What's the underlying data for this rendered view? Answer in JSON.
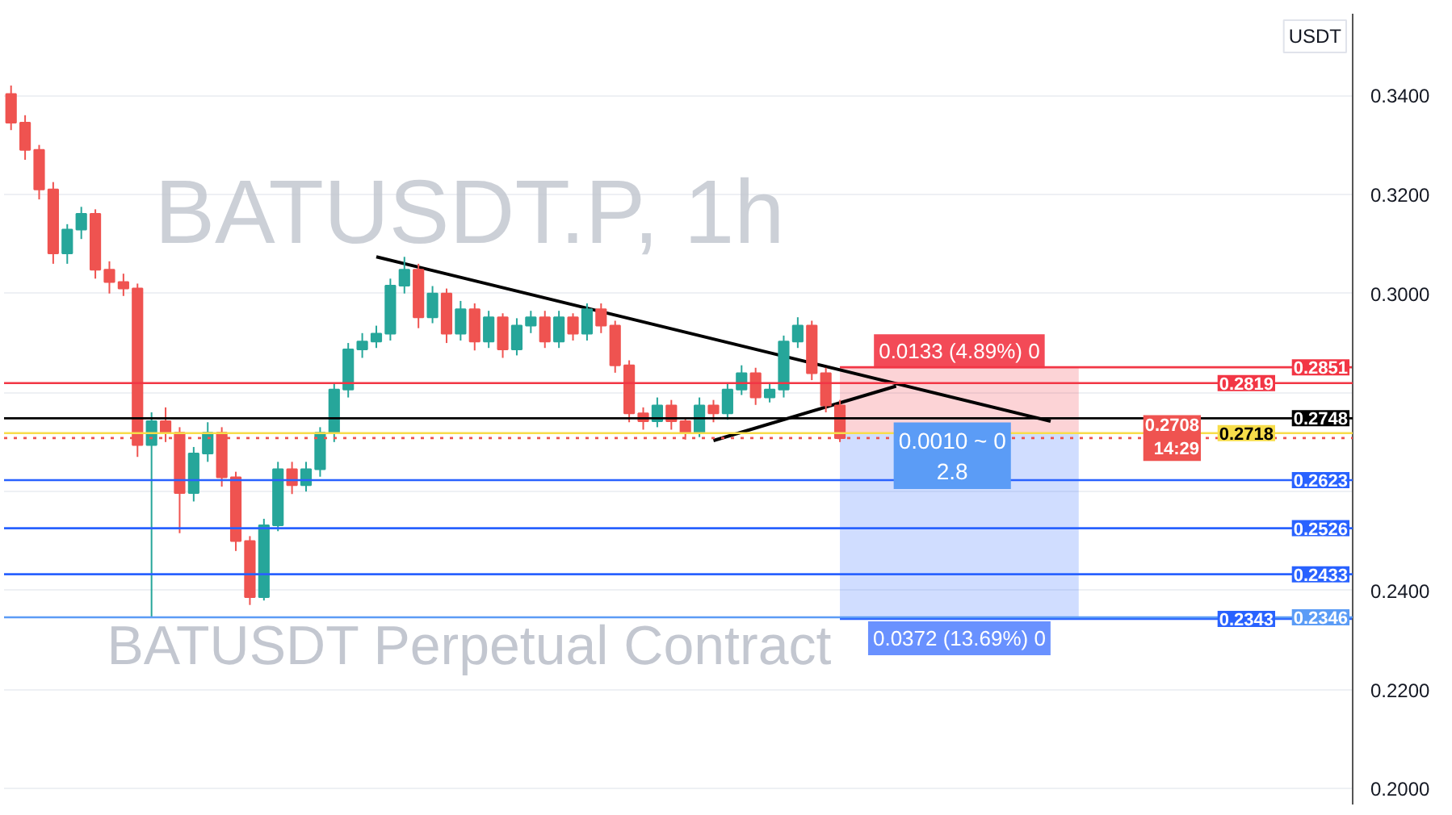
{
  "chart_data": {
    "type": "candlestick",
    "title": "BATUSDT.P, 1h",
    "subtitle": "BATUSDT Perpetual Contract",
    "ylabel": "USDT",
    "categories": [
      null,
      null,
      null,
      null,
      null,
      null,
      null,
      null,
      null,
      null,
      null,
      null,
      null,
      null,
      null,
      null,
      null,
      null,
      null,
      null,
      null,
      null,
      null,
      null,
      null,
      null,
      null,
      null,
      null,
      null,
      null,
      null,
      null,
      null,
      null,
      null,
      null,
      null,
      null,
      null,
      null,
      null,
      null,
      null,
      null,
      null,
      null,
      null,
      null,
      null,
      null,
      null,
      null,
      null,
      null,
      null,
      null,
      null,
      null,
      null,
      null,
      null,
      null,
      null,
      null,
      null,
      null,
      null,
      null,
      null,
      null,
      null,
      null,
      null,
      null,
      null,
      null,
      null,
      null,
      null,
      null,
      null,
      null,
      null,
      null,
      null,
      null,
      null,
      null,
      null,
      null,
      null,
      null,
      null,
      null,
      null
    ],
    "ohlc": [
      [
        0.3403,
        0.342,
        0.333,
        0.3345
      ],
      [
        0.3345,
        0.336,
        0.327,
        0.329
      ],
      [
        0.329,
        0.33,
        0.319,
        0.321
      ],
      [
        0.321,
        0.3225,
        0.306,
        0.3081
      ],
      [
        0.3081,
        0.314,
        0.306,
        0.3129
      ],
      [
        0.3129,
        0.3175,
        0.311,
        0.3161
      ],
      [
        0.3161,
        0.317,
        0.303,
        0.3048
      ],
      [
        0.3048,
        0.3065,
        0.3,
        0.3023
      ],
      [
        0.3023,
        0.304,
        0.2995,
        0.301
      ],
      [
        0.301,
        0.302,
        0.267,
        0.2694
      ],
      [
        0.2694,
        0.276,
        0.2345,
        0.2742
      ],
      [
        0.2742,
        0.277,
        0.27,
        0.2719
      ],
      [
        0.2719,
        0.273,
        0.2516,
        0.2597
      ],
      [
        0.2597,
        0.269,
        0.258,
        0.2677
      ],
      [
        0.2677,
        0.274,
        0.266,
        0.2719
      ],
      [
        0.2719,
        0.273,
        0.261,
        0.2629
      ],
      [
        0.2629,
        0.264,
        0.248,
        0.25
      ],
      [
        0.25,
        0.251,
        0.2371,
        0.2387
      ],
      [
        0.2387,
        0.2545,
        0.238,
        0.2532
      ],
      [
        0.2532,
        0.266,
        0.252,
        0.2645
      ],
      [
        0.2645,
        0.266,
        0.2595,
        0.2613
      ],
      [
        0.2613,
        0.266,
        0.26,
        0.2645
      ],
      [
        0.2645,
        0.273,
        0.263,
        0.2719
      ],
      [
        0.2719,
        0.282,
        0.27,
        0.2806
      ],
      [
        0.2806,
        0.29,
        0.279,
        0.2887
      ],
      [
        0.2887,
        0.292,
        0.287,
        0.2903
      ],
      [
        0.2903,
        0.2935,
        0.289,
        0.2919
      ],
      [
        0.2919,
        0.303,
        0.2905,
        0.3016
      ],
      [
        0.3016,
        0.3074,
        0.3,
        0.3048
      ],
      [
        0.3048,
        0.306,
        0.293,
        0.2952
      ],
      [
        0.2952,
        0.3015,
        0.294,
        0.3
      ],
      [
        0.3,
        0.301,
        0.29,
        0.2919
      ],
      [
        0.2919,
        0.2985,
        0.2905,
        0.2968
      ],
      [
        0.2968,
        0.298,
        0.2885,
        0.2903
      ],
      [
        0.2903,
        0.2965,
        0.289,
        0.2952
      ],
      [
        0.2952,
        0.296,
        0.287,
        0.2887
      ],
      [
        0.2887,
        0.295,
        0.2875,
        0.2935
      ],
      [
        0.2935,
        0.2965,
        0.292,
        0.2952
      ],
      [
        0.2952,
        0.2965,
        0.289,
        0.2903
      ],
      [
        0.2903,
        0.2965,
        0.289,
        0.2952
      ],
      [
        0.2952,
        0.296,
        0.2905,
        0.2919
      ],
      [
        0.2919,
        0.298,
        0.2905,
        0.2968
      ],
      [
        0.2968,
        0.298,
        0.292,
        0.2935
      ],
      [
        0.2935,
        0.2945,
        0.284,
        0.2855
      ],
      [
        0.2855,
        0.2865,
        0.274,
        0.2758
      ],
      [
        0.2758,
        0.277,
        0.2725,
        0.2742
      ],
      [
        0.2742,
        0.279,
        0.273,
        0.2774
      ],
      [
        0.2774,
        0.2785,
        0.2725,
        0.2742
      ],
      [
        0.2742,
        0.275,
        0.2705,
        0.2719
      ],
      [
        0.2719,
        0.279,
        0.271,
        0.2774
      ],
      [
        0.2774,
        0.2785,
        0.274,
        0.2758
      ],
      [
        0.2758,
        0.282,
        0.2745,
        0.2806
      ],
      [
        0.2806,
        0.2855,
        0.2795,
        0.2839
      ],
      [
        0.2839,
        0.285,
        0.2775,
        0.279
      ],
      [
        0.279,
        0.282,
        0.278,
        0.2806
      ],
      [
        0.2806,
        0.2915,
        0.279,
        0.2903
      ],
      [
        0.2903,
        0.2952,
        0.289,
        0.2935
      ],
      [
        0.2935,
        0.2945,
        0.2825,
        0.2839
      ],
      [
        0.2839,
        0.285,
        0.276,
        0.2774
      ],
      [
        0.2774,
        0.2785,
        0.27,
        0.2708
      ],
      null,
      null,
      null,
      null,
      null,
      null,
      null,
      null,
      null,
      null,
      null,
      null,
      null,
      null,
      null,
      null,
      null,
      null,
      null,
      null,
      null,
      null,
      null,
      null,
      null,
      null,
      null,
      null,
      null,
      null,
      null,
      null,
      null,
      null,
      null,
      null
    ],
    "series": [
      {
        "type": "line",
        "color": "#000000",
        "values": [
          null,
          null,
          null,
          null,
          null,
          null,
          null,
          null,
          null,
          null,
          null,
          null,
          null,
          null,
          null,
          null,
          null,
          null,
          null,
          null,
          null,
          null,
          null,
          null,
          null,
          null,
          0.3074,
          null,
          null,
          null,
          null,
          null,
          null,
          null,
          null,
          null,
          null,
          null,
          null,
          null,
          null,
          null,
          null,
          null,
          null,
          null,
          null,
          null,
          null,
          null,
          null,
          null,
          null,
          null,
          null,
          null,
          null,
          null,
          null,
          null,
          null,
          null,
          null,
          null,
          null,
          null,
          null,
          null,
          null,
          null,
          null,
          null,
          null,
          null,
          0.2742,
          null,
          null,
          null,
          null,
          null,
          null,
          null,
          null,
          null,
          null,
          null,
          null,
          null,
          null,
          null,
          null,
          null,
          null,
          null,
          null,
          null
        ]
      },
      {
        "type": "line",
        "color": "#000000",
        "values": [
          null,
          null,
          null,
          null,
          null,
          null,
          null,
          null,
          null,
          null,
          null,
          null,
          null,
          null,
          null,
          null,
          null,
          null,
          null,
          null,
          null,
          null,
          null,
          null,
          null,
          null,
          null,
          null,
          null,
          null,
          null,
          null,
          null,
          null,
          null,
          null,
          null,
          null,
          null,
          null,
          null,
          null,
          null,
          null,
          null,
          null,
          null,
          null,
          null,
          null,
          0.2703,
          null,
          null,
          null,
          null,
          null,
          null,
          null,
          null,
          null,
          null,
          null,
          null,
          0.2813,
          null,
          null,
          null,
          null,
          null,
          null,
          null,
          null,
          null,
          null,
          null,
          null,
          null,
          null,
          null,
          null,
          null,
          null,
          null,
          null,
          null,
          null,
          null,
          null,
          null,
          null,
          null,
          null,
          null,
          null,
          null,
          null
        ]
      }
    ],
    "ylim": [
      0.1968,
      0.3565
    ],
    "yticks": [
      {
        "value": 0.34,
        "label": "0.3400"
      },
      {
        "value": 0.32,
        "label": "0.3200"
      },
      {
        "value": 0.3,
        "label": "0.3000"
      },
      {
        "value": 0.28,
        "label": null
      },
      {
        "value": 0.26,
        "label": null
      },
      {
        "value": 0.24,
        "label": "0.2400"
      },
      {
        "value": 0.22,
        "label": "0.2200"
      },
      {
        "value": 0.2,
        "label": "0.2000"
      }
    ],
    "ref_lines": [
      {
        "axis": "y",
        "value": 0.2851,
        "label": "0.2851",
        "color": "#f23645"
      },
      {
        "axis": "y",
        "value": 0.2819,
        "label": "0.2819",
        "color": "#f23645"
      },
      {
        "axis": "y",
        "value": 0.2748,
        "label": "0.2748",
        "color": "#000000"
      },
      {
        "axis": "y",
        "value": 0.2718,
        "label": "0.2718",
        "color": "#f7dd4a"
      },
      {
        "axis": "y",
        "value": 0.2708,
        "label": "0.2708\n14:29",
        "color": "#ef5350",
        "line_style": "dotted"
      },
      {
        "axis": "y",
        "value": 0.2623,
        "label": "0.2623",
        "color": "#2962ff"
      },
      {
        "axis": "y",
        "value": 0.2526,
        "label": "0.2526",
        "color": "#2962ff"
      },
      {
        "axis": "y",
        "value": 0.2433,
        "label": "0.2433",
        "color": "#2962ff"
      },
      {
        "axis": "y",
        "value": 0.2346,
        "label": "0.2346",
        "color": "#5b9cf6"
      },
      {
        "axis": "y",
        "value": 0.2343,
        "label": "0.2343",
        "color": "#2962ff"
      }
    ],
    "bands": [
      {
        "axis": "y",
        "from": 0.2718,
        "to": 0.2851,
        "label": "0.0133 (4.89%) 0",
        "color": "#f23645"
      },
      {
        "axis": "y",
        "from": 0.2343,
        "to": 0.2718,
        "label": "0.0372 (13.69%) 0",
        "color": "#2962ff"
      }
    ],
    "annotations": [
      "0.0010 ~ 0\n2.8"
    ],
    "grid": "y",
    "tick_labels": "y"
  }
}
